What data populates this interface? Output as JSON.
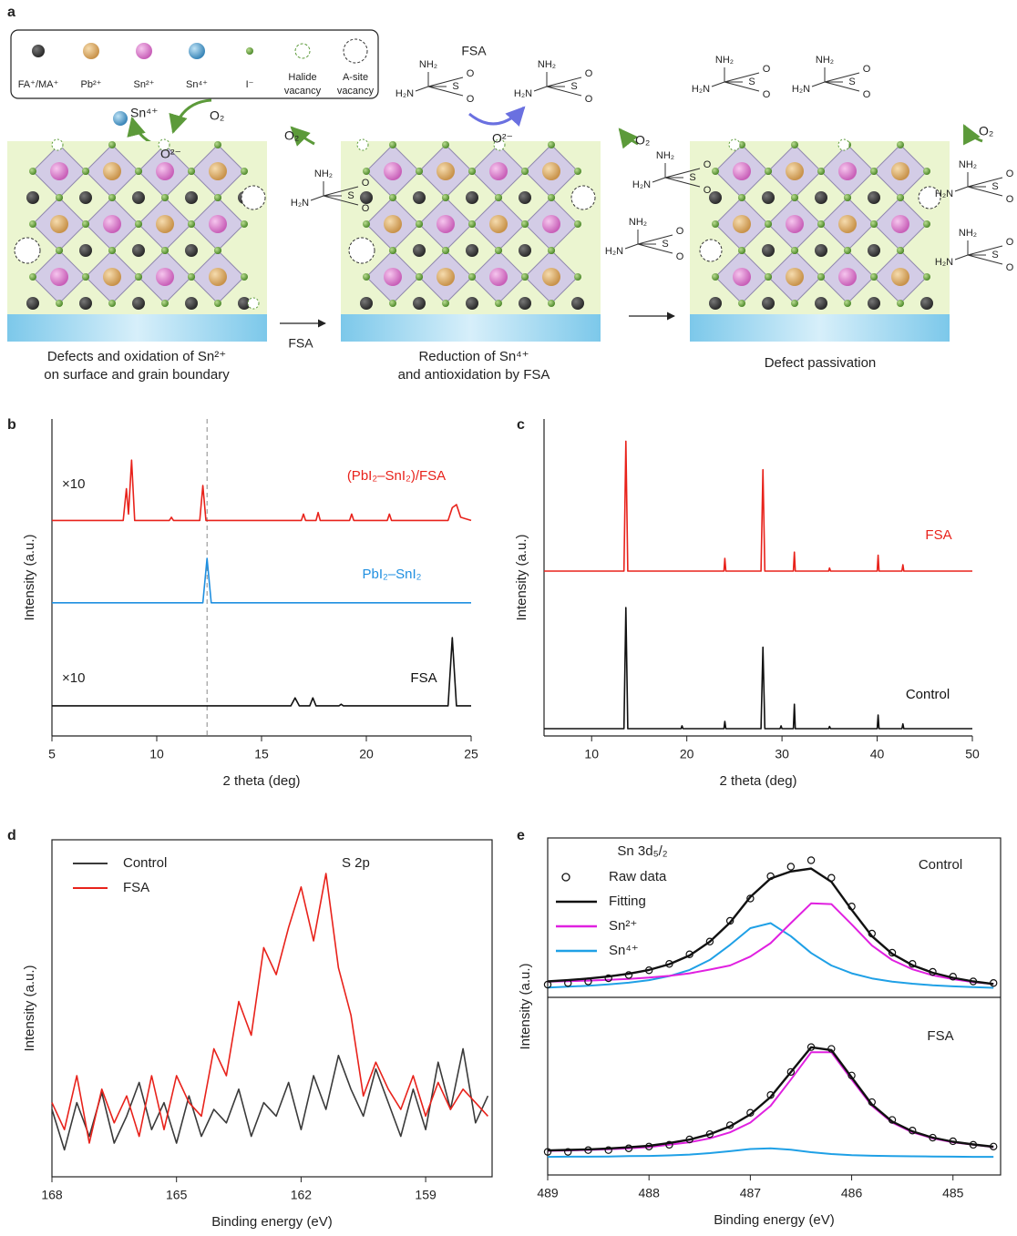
{
  "diagram": {
    "label": "a",
    "legend": [
      [
        "FA⁺/MA⁺"
      ],
      [
        "Pb²⁺"
      ],
      [
        "Sn²⁺"
      ],
      [
        "Sn⁴⁺"
      ],
      [
        "I⁻"
      ],
      [
        "Halide",
        "vacancy"
      ],
      [
        "A-site",
        "vacancy"
      ]
    ],
    "sn4": "Sn⁴⁺",
    "o2": "O₂",
    "o2minus": "O²⁻",
    "fsa": "FSA",
    "molecule_atoms": [
      "NH₂",
      "H₂N",
      "S",
      "O",
      "O"
    ],
    "captions": [
      [
        "Defects and oxidation of Sn²⁺",
        "on surface and grain boundary"
      ],
      [
        "Reduction of Sn⁴⁺",
        "and antioxidation by FSA"
      ],
      [
        "Defect passivation"
      ]
    ]
  },
  "chart_data": [
    {
      "type": "line",
      "label": "b",
      "xlabel": "2 theta (deg)",
      "ylabel": "Intensity (a.u.)",
      "xlim": [
        5,
        25
      ],
      "xticks": [
        5,
        10,
        15,
        20,
        25
      ],
      "ylim": [
        0,
        100
      ],
      "vline": 12.4,
      "annotations": [
        "×10",
        "×10"
      ],
      "series": [
        {
          "name": "(PbI₂–SnI₂)/FSA",
          "color": "#e8221b",
          "x": [
            5,
            8.4,
            8.55,
            8.65,
            8.8,
            8.95,
            10.6,
            10.7,
            10.8,
            12.05,
            12.2,
            12.35,
            16.9,
            17.0,
            17.1,
            17.6,
            17.7,
            17.8,
            19.2,
            19.3,
            19.4,
            21.0,
            21.1,
            21.2,
            23.9,
            24.1,
            24.3,
            24.5,
            25
          ],
          "values": [
            68,
            68,
            78,
            70,
            87,
            68,
            68,
            69,
            68,
            68,
            79,
            68,
            68,
            70,
            68,
            68,
            70.5,
            68,
            68,
            70,
            68,
            68,
            70,
            68,
            68,
            72,
            73,
            69,
            68
          ]
        },
        {
          "name": "PbI₂–SnI₂",
          "color": "#1f8fe0",
          "x": [
            5,
            12.2,
            12.4,
            12.6,
            25
          ],
          "values": [
            42,
            42,
            56,
            42,
            42
          ]
        },
        {
          "name": "FSA",
          "color": "#111111",
          "x": [
            5,
            16.4,
            16.6,
            16.8,
            17.3,
            17.45,
            17.6,
            18.7,
            18.8,
            18.9,
            23.9,
            24.1,
            24.3,
            25
          ],
          "values": [
            9.5,
            9.5,
            12,
            9.5,
            9.5,
            12,
            9.5,
            9.5,
            10,
            9.5,
            9.5,
            31,
            9.5,
            9.5
          ]
        }
      ]
    },
    {
      "type": "line",
      "label": "c",
      "xlabel": "2 theta (deg)",
      "ylabel": "Intensity (a.u.)",
      "xlim": [
        5,
        50
      ],
      "xticks": [
        10,
        20,
        30,
        40,
        50
      ],
      "ylim": [
        0,
        100
      ],
      "series": [
        {
          "name": "FSA",
          "color": "#e8221b",
          "x": [
            5,
            13.4,
            13.6,
            13.8,
            23.9,
            24.0,
            24.1,
            27.8,
            28.0,
            28.2,
            31.2,
            31.3,
            31.4,
            34.9,
            35.0,
            35.1,
            40.0,
            40.1,
            40.2,
            42.6,
            42.7,
            42.8,
            50
          ],
          "values": [
            52,
            52,
            93,
            52,
            52,
            56,
            52,
            52,
            84,
            52,
            52,
            58,
            52,
            52,
            53,
            52,
            52,
            57,
            52,
            52,
            54,
            52,
            52
          ]
        },
        {
          "name": "Control",
          "color": "#111111",
          "x": [
            5,
            13.4,
            13.6,
            13.8,
            19.4,
            19.5,
            19.6,
            23.9,
            24.0,
            24.1,
            27.8,
            28.0,
            28.2,
            29.8,
            29.9,
            30.0,
            31.2,
            31.3,
            31.4,
            34.9,
            35.0,
            35.1,
            40.0,
            40.1,
            40.2,
            42.6,
            42.7,
            42.8,
            50
          ],
          "values": [
            2.3,
            2.3,
            40.5,
            2.3,
            2.3,
            3.2,
            2.3,
            2.3,
            4.6,
            2.3,
            2.3,
            28,
            2.3,
            2.3,
            3.2,
            2.3,
            2.3,
            10,
            2.3,
            2.3,
            3,
            2.3,
            2.3,
            6.6,
            2.3,
            2.3,
            3.8,
            2.3,
            2.3
          ]
        }
      ]
    },
    {
      "type": "line",
      "label": "d",
      "xlabel": "Binding energy (eV)",
      "ylabel": "Intensity (a.u.)",
      "xlim": [
        168,
        157.4
      ],
      "xticks": [
        168,
        165,
        162,
        159
      ],
      "ylim": [
        0,
        100
      ],
      "legend": "upper left",
      "annotations": [
        "S 2p"
      ],
      "series": [
        {
          "name": "Control",
          "color": "#3a3a3a",
          "x": [
            168,
            167.7,
            167.4,
            167.1,
            166.8,
            166.5,
            166.2,
            165.9,
            165.6,
            165.3,
            165,
            164.7,
            164.4,
            164.1,
            163.8,
            163.5,
            163.2,
            162.9,
            162.6,
            162.3,
            162,
            161.7,
            161.4,
            161.1,
            160.8,
            160.5,
            160.2,
            159.9,
            159.6,
            159.3,
            159,
            158.7,
            158.4,
            158.1,
            157.8,
            157.5
          ],
          "values": [
            20,
            8,
            22,
            12,
            25,
            10,
            18,
            28,
            14,
            22,
            10,
            24,
            12,
            20,
            16,
            26,
            12,
            22,
            18,
            28,
            14,
            30,
            20,
            36,
            26,
            18,
            32,
            22,
            12,
            26,
            14,
            34,
            20,
            38,
            16,
            24
          ]
        },
        {
          "name": "FSA",
          "color": "#e8221b",
          "x": [
            168,
            167.7,
            167.4,
            167.1,
            166.8,
            166.5,
            166.2,
            165.9,
            165.6,
            165.3,
            165,
            164.7,
            164.4,
            164.1,
            163.8,
            163.5,
            163.2,
            162.9,
            162.6,
            162.3,
            162,
            161.7,
            161.4,
            161.1,
            160.8,
            160.5,
            160.2,
            159.9,
            159.6,
            159.3,
            159,
            158.7,
            158.4,
            158.1,
            157.8,
            157.5
          ],
          "values": [
            22,
            14,
            30,
            10,
            26,
            16,
            24,
            12,
            30,
            14,
            30,
            22,
            18,
            38,
            30,
            52,
            42,
            68,
            60,
            74,
            86,
            70,
            90,
            62,
            48,
            24,
            34,
            26,
            20,
            30,
            18,
            28,
            20,
            26,
            22,
            18
          ]
        }
      ]
    },
    {
      "type": "xps",
      "label": "e",
      "xlabel": "Binding energy (eV)",
      "ylabel": "Intensity (a.u.)",
      "xlim": [
        489,
        484.53
      ],
      "xticks": [
        489,
        488,
        487,
        486,
        485
      ],
      "legend": "upper left",
      "annotations": [
        "Sn 3d₅/₂"
      ],
      "x": [
        489,
        488.8,
        488.6,
        488.4,
        488.2,
        488,
        487.8,
        487.6,
        487.4,
        487.2,
        487,
        486.8,
        486.6,
        486.4,
        486.2,
        486,
        485.8,
        485.6,
        485.4,
        485.2,
        485,
        484.8,
        484.6
      ],
      "panels": [
        {
          "title": "Control",
          "ylim": [
            0,
            100
          ],
          "series": [
            {
              "name": "Raw data",
              "color": "#111111",
              "marker": "circle",
              "values": [
                8,
                9,
                10,
                12,
                14,
                17,
                21,
                27,
                35,
                48,
                62,
                76,
                82,
                86,
                75,
                57,
                40,
                28,
                21,
                16,
                13,
                10,
                9
              ]
            },
            {
              "name": "Fitting",
              "color": "#111111",
              "values": [
                10,
                10.8,
                11.8,
                13.1,
                14.8,
                17.2,
                20.8,
                26.3,
                34.9,
                46.9,
                63,
                74.6,
                79,
                80.8,
                72.5,
                54.9,
                38.4,
                27.3,
                20.2,
                15.4,
                12.3,
                10,
                8.4
              ]
            },
            {
              "name": "Sn²⁺",
              "color": "#e020e0",
              "values": [
                9.8,
                10.1,
                10.5,
                11,
                11.6,
                12.4,
                13.5,
                15.1,
                17.4,
                20,
                25.6,
                34,
                46.6,
                59,
                58.5,
                45.8,
                32.5,
                23.4,
                17.6,
                13.8,
                11.4,
                9.6,
                8.4
              ]
            },
            {
              "name": "Sn⁴⁺",
              "color": "#1fa0e6",
              "values": [
                6.2,
                6.7,
                7.3,
                8.1,
                9.2,
                10.8,
                13.3,
                17.2,
                23.5,
                32.9,
                43.4,
                46.6,
                38.4,
                27.8,
                20,
                15.1,
                11.9,
                9.9,
                8.6,
                7.6,
                6.9,
                6.4,
                6
              ]
            }
          ]
        },
        {
          "title": "FSA",
          "ylim": [
            0,
            100
          ],
          "series": [
            {
              "name": "Raw data",
              "color": "#111111",
              "marker": "circle",
              "values": [
                13,
                13,
                14,
                14,
                15,
                16,
                17,
                20,
                23,
                28,
                35,
                45,
                58,
                72,
                71,
                56,
                41,
                31,
                25,
                21,
                19,
                17,
                16
              ]
            },
            {
              "name": "Fitting",
              "color": "#111111",
              "values": [
                13.8,
                14.1,
                14.4,
                14.9,
                15.6,
                16.4,
                18,
                19.9,
                22.9,
                27.4,
                34.1,
                43.9,
                57.9,
                71.9,
                70.3,
                54.9,
                39.7,
                30.1,
                24.5,
                21,
                18.7,
                17.2,
                15.9
              ]
            },
            {
              "name": "Sn²⁺",
              "color": "#e020e0",
              "values": [
                13.6,
                13.8,
                14.1,
                14.5,
                15,
                15.7,
                17,
                18.4,
                20.6,
                24,
                29.5,
                38.9,
                53.7,
                69.1,
                69.1,
                53.7,
                38.9,
                29.5,
                24,
                20.6,
                18.4,
                17,
                15.7
              ]
            },
            {
              "name": "Sn⁴⁺",
              "color": "#1fa0e6",
              "values": [
                10.2,
                10.3,
                10.3,
                10.4,
                10.6,
                10.7,
                11,
                11.5,
                12.3,
                13.4,
                14.6,
                15,
                14.2,
                12.8,
                11.8,
                11.2,
                10.8,
                10.6,
                10.5,
                10.4,
                10.3,
                10.2,
                10.2
              ]
            }
          ]
        }
      ]
    }
  ]
}
